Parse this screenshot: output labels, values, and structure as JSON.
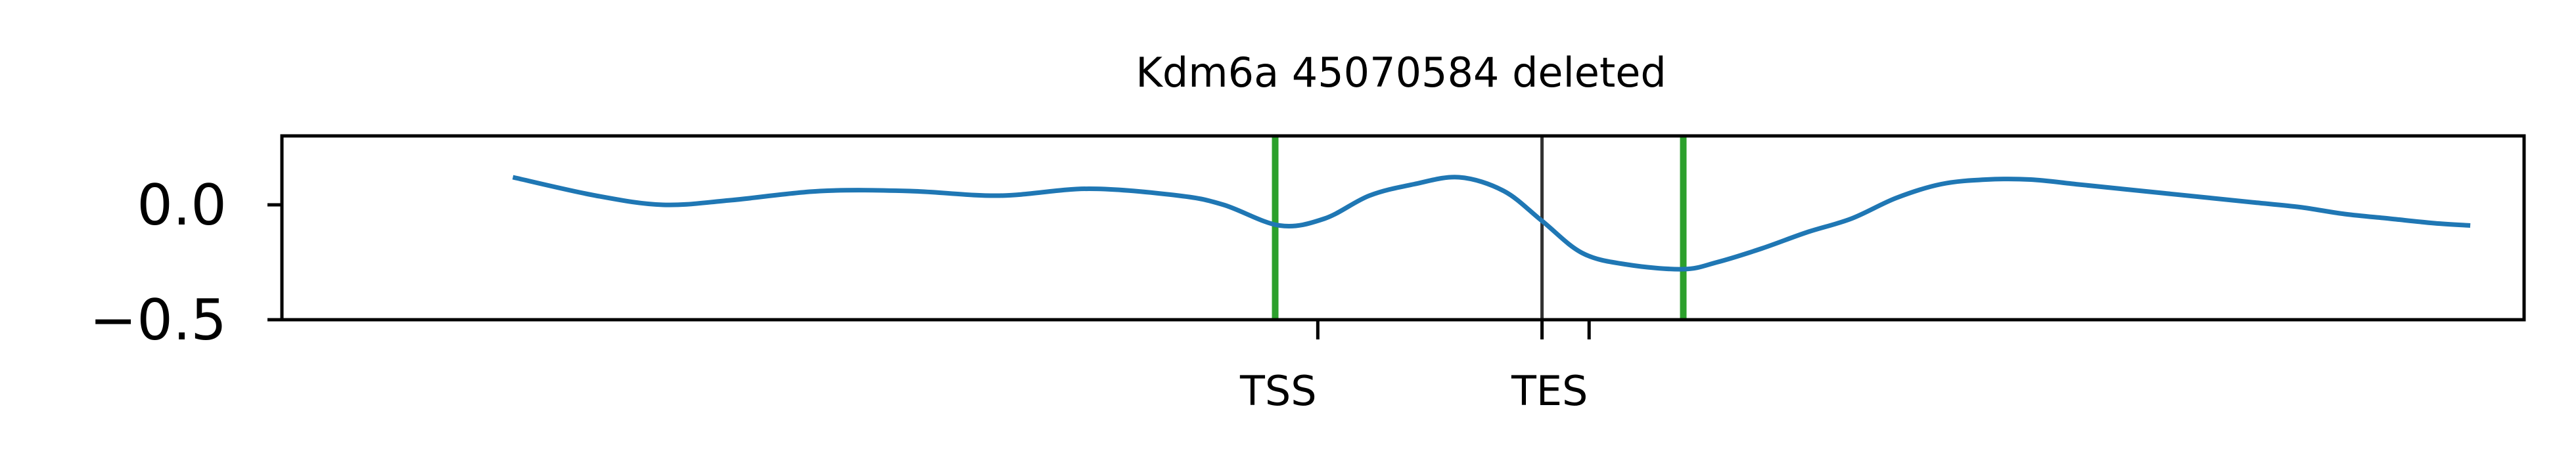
{
  "chart_data": {
    "type": "line",
    "title": "Kdm6a 45070584 deleted",
    "xlabel": "",
    "ylabel": "",
    "xlim": [
      0,
      100
    ],
    "ylim": [
      -0.5,
      0.3
    ],
    "grid": false,
    "legend": "none",
    "y_ticks": [
      {
        "value": 0.0,
        "label": "0.0"
      },
      {
        "value": -0.5,
        "label": "−0.5"
      }
    ],
    "x_ticks": [
      {
        "value": 46.2,
        "label": "TSS"
      },
      {
        "value": 56.2,
        "label": ""
      },
      {
        "value": 58.3,
        "label": "TES"
      }
    ],
    "vertical_lines": [
      {
        "x": 44.3,
        "color": "#2ca02c"
      },
      {
        "x": 56.2,
        "color": "#333333"
      },
      {
        "x": 62.5,
        "color": "#2ca02c"
      }
    ],
    "series": [
      {
        "color": "#1f77b4",
        "x": [
          10.3,
          14.0,
          17.0,
          20.0,
          24.0,
          28.0,
          32.0,
          36.0,
          40.0,
          42.0,
          44.5,
          46.5,
          48.5,
          50.5,
          52.5,
          54.5,
          56.2,
          58.0,
          60.0,
          62.5,
          64.0,
          66.0,
          68.0,
          70.0,
          72.0,
          74.0,
          76.0,
          78.0,
          80.0,
          82.0,
          84.0,
          86.0,
          88.0,
          90.0,
          92.0,
          94.0,
          96.0,
          97.6
        ],
        "values": [
          0.12,
          0.04,
          0.0,
          0.02,
          0.06,
          0.06,
          0.04,
          0.07,
          0.04,
          0.0,
          -0.09,
          -0.06,
          0.04,
          0.09,
          0.12,
          0.06,
          -0.07,
          -0.21,
          -0.26,
          -0.28,
          -0.25,
          -0.19,
          -0.12,
          -0.06,
          0.03,
          0.09,
          0.11,
          0.11,
          0.09,
          0.07,
          0.05,
          0.03,
          0.01,
          -0.01,
          -0.04,
          -0.06,
          -0.08,
          -0.09
        ]
      }
    ]
  }
}
